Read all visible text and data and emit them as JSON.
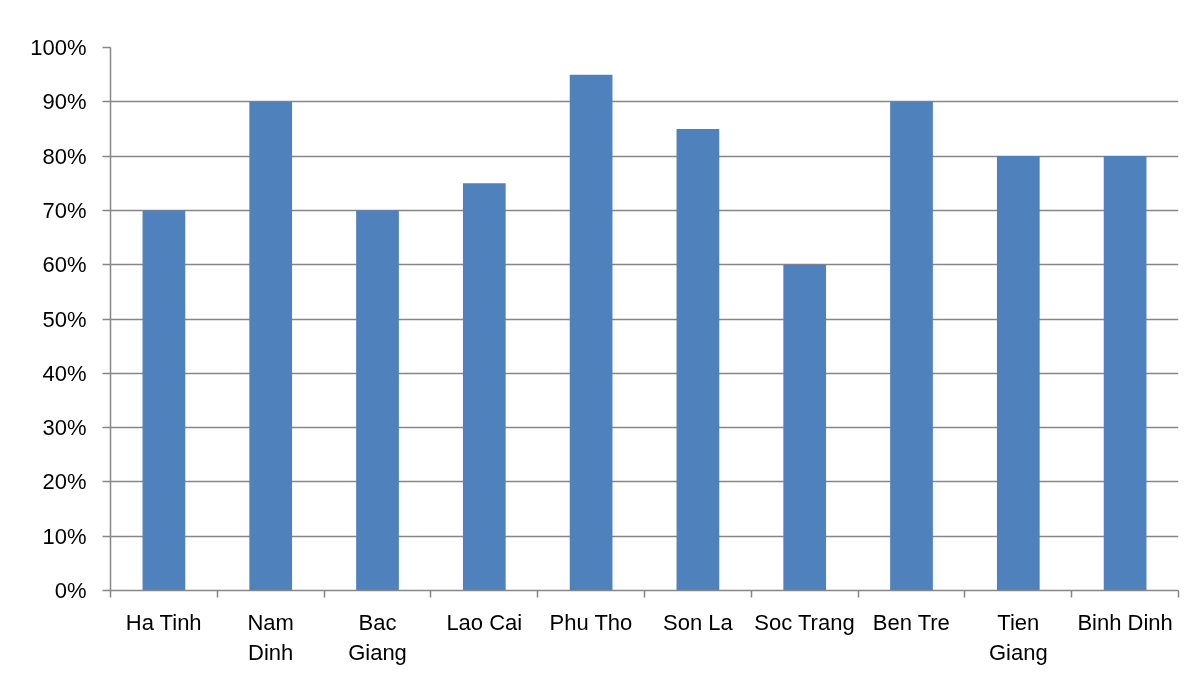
{
  "chart_data": {
    "type": "bar",
    "categories": [
      "Ha Tinh",
      "Nam\nDinh",
      "Bac\nGiang",
      "Lao Cai",
      "Phu Tho",
      "Son La",
      "Soc Trang",
      "Ben Tre",
      "Tien\nGiang",
      "Binh Dinh"
    ],
    "values": [
      70,
      90,
      70,
      75,
      95,
      85,
      60,
      90,
      80,
      80
    ],
    "color": "#4f81bd",
    "ylim": [
      0,
      100
    ],
    "yticks": [
      {
        "value": 0,
        "label": "0%"
      },
      {
        "value": 10,
        "label": "10%"
      },
      {
        "value": 20,
        "label": "20%"
      },
      {
        "value": 30,
        "label": "30%"
      },
      {
        "value": 40,
        "label": "40%"
      },
      {
        "value": 50,
        "label": "50%"
      },
      {
        "value": 60,
        "label": "60%"
      },
      {
        "value": 70,
        "label": "70%"
      },
      {
        "value": 80,
        "label": "80%"
      },
      {
        "value": 90,
        "label": "90%"
      },
      {
        "value": 100,
        "label": "100%"
      }
    ],
    "grid": "y"
  }
}
